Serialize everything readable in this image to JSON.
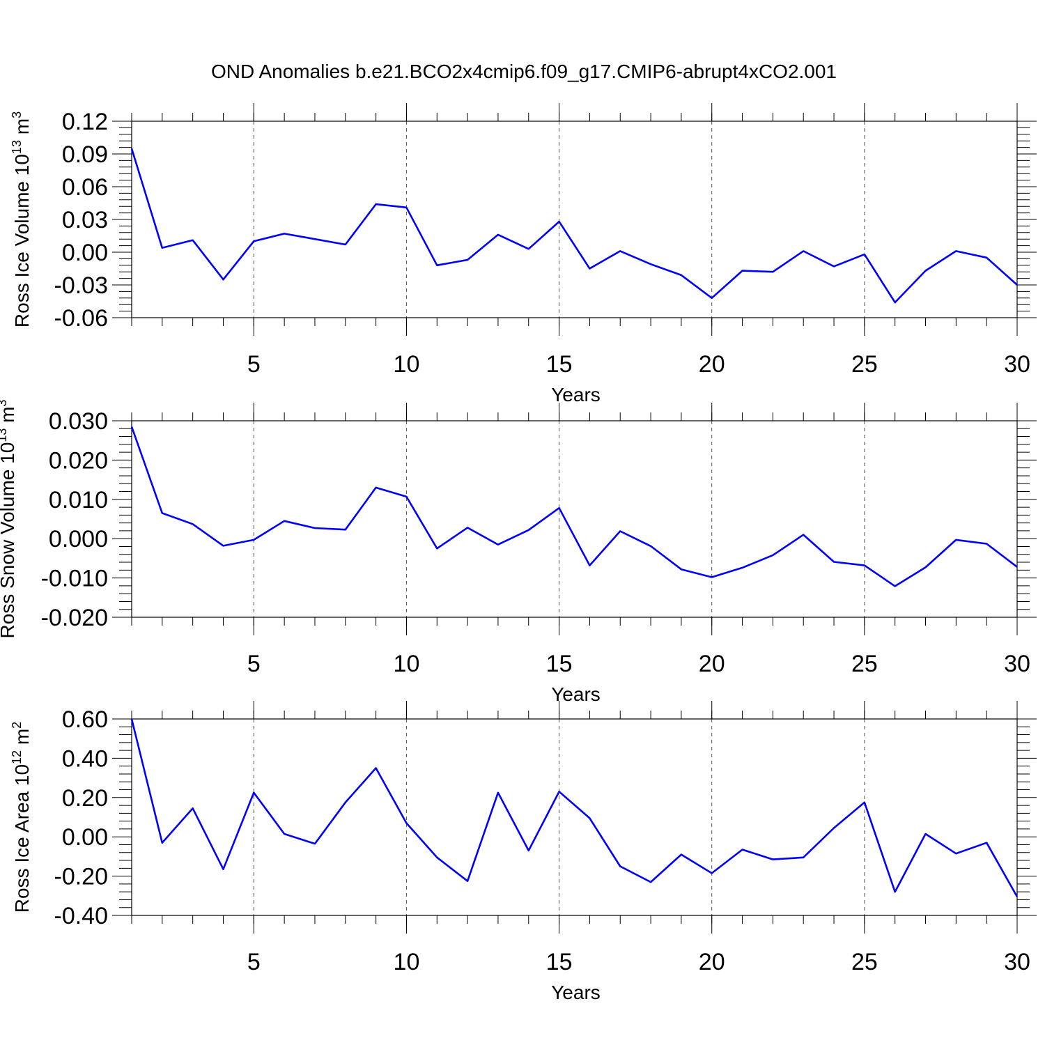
{
  "title": "OND Anomalies b.e21.BCO2x4cmip6.f09_g17.CMIP6-abrupt4xCO2.001",
  "colors": {
    "series": "#0000ff",
    "axes": "#000000",
    "grid": "#555555"
  },
  "chart_data": [
    {
      "type": "line",
      "name": "ross-ice-volume",
      "ylabel_main": "Ross Ice Volume 10",
      "ylabel_sup": "13",
      "ylabel_unit": " m",
      "ylabel_unit_sup": "3",
      "xlabel": "Years",
      "xlim": [
        1,
        30
      ],
      "ylim": [
        -0.06,
        0.12
      ],
      "xticks": [
        5,
        10,
        15,
        20,
        25,
        30
      ],
      "xtick_labels": [
        "5",
        "10",
        "15",
        "20",
        "25",
        "30"
      ],
      "yticks": [
        -0.06,
        -0.03,
        0.0,
        0.03,
        0.06,
        0.09,
        0.12
      ],
      "ytick_labels": [
        "-0.06",
        "-0.03",
        "0.00",
        "0.03",
        "0.06",
        "0.09",
        "0.12"
      ],
      "grid_x": [
        5,
        10,
        15,
        20,
        25
      ],
      "x": [
        1,
        2,
        3,
        4,
        5,
        6,
        7,
        8,
        9,
        10,
        11,
        12,
        13,
        14,
        15,
        16,
        17,
        18,
        19,
        20,
        21,
        22,
        23,
        24,
        25,
        26,
        27,
        28,
        29,
        30
      ],
      "values": [
        0.095,
        0.004,
        0.011,
        -0.025,
        0.01,
        0.017,
        0.012,
        0.007,
        0.044,
        0.041,
        -0.012,
        -0.007,
        0.016,
        0.003,
        0.028,
        -0.015,
        0.001,
        -0.011,
        -0.021,
        -0.042,
        -0.017,
        -0.018,
        0.001,
        -0.013,
        -0.002,
        -0.046,
        -0.017,
        0.001,
        -0.005,
        -0.03
      ]
    },
    {
      "type": "line",
      "name": "ross-snow-volume",
      "ylabel_main": "Ross Snow Volume 10",
      "ylabel_sup": "13",
      "ylabel_unit": " m",
      "ylabel_unit_sup": "3",
      "xlabel": "Years",
      "xlim": [
        1,
        30
      ],
      "ylim": [
        -0.02,
        0.03
      ],
      "xticks": [
        5,
        10,
        15,
        20,
        25,
        30
      ],
      "xtick_labels": [
        "5",
        "10",
        "15",
        "20",
        "25",
        "30"
      ],
      "yticks": [
        -0.02,
        -0.01,
        0.0,
        0.01,
        0.02,
        0.03
      ],
      "ytick_labels": [
        "-0.020",
        "-0.010",
        "0.000",
        "0.010",
        "0.020",
        "0.030"
      ],
      "grid_x": [
        5,
        10,
        15,
        20,
        25
      ],
      "x": [
        1,
        2,
        3,
        4,
        5,
        6,
        7,
        8,
        9,
        10,
        11,
        12,
        13,
        14,
        15,
        16,
        17,
        18,
        19,
        20,
        21,
        22,
        23,
        24,
        25,
        26,
        27,
        28,
        29,
        30
      ],
      "values": [
        0.0285,
        0.0065,
        0.0037,
        -0.0018,
        -0.0003,
        0.0045,
        0.0027,
        0.0023,
        0.013,
        0.0107,
        -0.0025,
        0.0028,
        -0.0015,
        0.0022,
        0.0078,
        -0.0068,
        0.0019,
        -0.0019,
        -0.0078,
        -0.0098,
        -0.0074,
        -0.0042,
        0.001,
        -0.0059,
        -0.0068,
        -0.0121,
        -0.0073,
        -0.0003,
        -0.0013,
        -0.0072
      ]
    },
    {
      "type": "line",
      "name": "ross-ice-area",
      "ylabel_main": "Ross Ice Area 10",
      "ylabel_sup": "12",
      "ylabel_unit": " m",
      "ylabel_unit_sup": "2",
      "xlabel": "Years",
      "xlim": [
        1,
        30
      ],
      "ylim": [
        -0.4,
        0.6
      ],
      "xticks": [
        5,
        10,
        15,
        20,
        25,
        30
      ],
      "xtick_labels": [
        "5",
        "10",
        "15",
        "20",
        "25",
        "30"
      ],
      "yticks": [
        -0.4,
        -0.2,
        0.0,
        0.2,
        0.4,
        0.6
      ],
      "ytick_labels": [
        "-0.40",
        "-0.20",
        "0.00",
        "0.20",
        "0.40",
        "0.60"
      ],
      "grid_x": [
        5,
        10,
        15,
        20,
        25
      ],
      "x": [
        1,
        2,
        3,
        4,
        5,
        6,
        7,
        8,
        9,
        10,
        11,
        12,
        13,
        14,
        15,
        16,
        17,
        18,
        19,
        20,
        21,
        22,
        23,
        24,
        25,
        26,
        27,
        28,
        29,
        30
      ],
      "values": [
        0.6,
        -0.03,
        0.145,
        -0.165,
        0.225,
        0.015,
        -0.035,
        0.175,
        0.35,
        0.07,
        -0.105,
        -0.225,
        0.225,
        -0.07,
        0.23,
        0.095,
        -0.15,
        -0.23,
        -0.09,
        -0.185,
        -0.065,
        -0.115,
        -0.105,
        0.045,
        0.175,
        -0.28,
        0.015,
        -0.085,
        -0.03,
        -0.305
      ]
    }
  ]
}
